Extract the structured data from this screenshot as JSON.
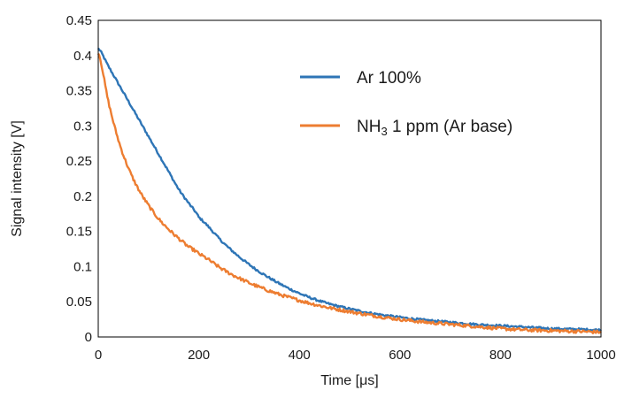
{
  "chart_data": {
    "type": "line",
    "title": "",
    "xlabel": "Time [μs]",
    "ylabel": "Signal intensity [V]",
    "xlim": [
      0,
      1000
    ],
    "ylim": [
      0,
      0.45
    ],
    "xticks": [
      "0",
      "200",
      "400",
      "600",
      "800",
      "1000"
    ],
    "yticks": [
      "0",
      "0.05",
      "0.1",
      "0.15",
      "0.2",
      "0.25",
      "0.3",
      "0.35",
      "0.4",
      "0.45"
    ],
    "grid": false,
    "legend_position": "top-right",
    "x": [
      0,
      20,
      40,
      60,
      80,
      100,
      120,
      140,
      160,
      180,
      200,
      250,
      300,
      350,
      400,
      450,
      500,
      550,
      600,
      650,
      700,
      750,
      800,
      850,
      900,
      950,
      1000
    ],
    "series": [
      {
        "name": "Ar 100%",
        "color": "#2e75b6",
        "values": [
          0.41,
          0.385,
          0.36,
          0.335,
          0.31,
          0.285,
          0.26,
          0.235,
          0.21,
          0.19,
          0.17,
          0.133,
          0.103,
          0.08,
          0.062,
          0.049,
          0.04,
          0.033,
          0.028,
          0.024,
          0.021,
          0.018,
          0.016,
          0.014,
          0.012,
          0.011,
          0.01
        ]
      },
      {
        "name_parts": [
          "NH",
          "3",
          " 1 ppm (Ar base)"
        ],
        "color": "#ed7d31",
        "values": [
          0.405,
          0.335,
          0.28,
          0.24,
          0.21,
          0.187,
          0.168,
          0.153,
          0.14,
          0.128,
          0.118,
          0.095,
          0.077,
          0.063,
          0.052,
          0.043,
          0.036,
          0.03,
          0.025,
          0.021,
          0.018,
          0.015,
          0.012,
          0.01,
          0.009,
          0.008,
          0.007
        ]
      }
    ]
  }
}
